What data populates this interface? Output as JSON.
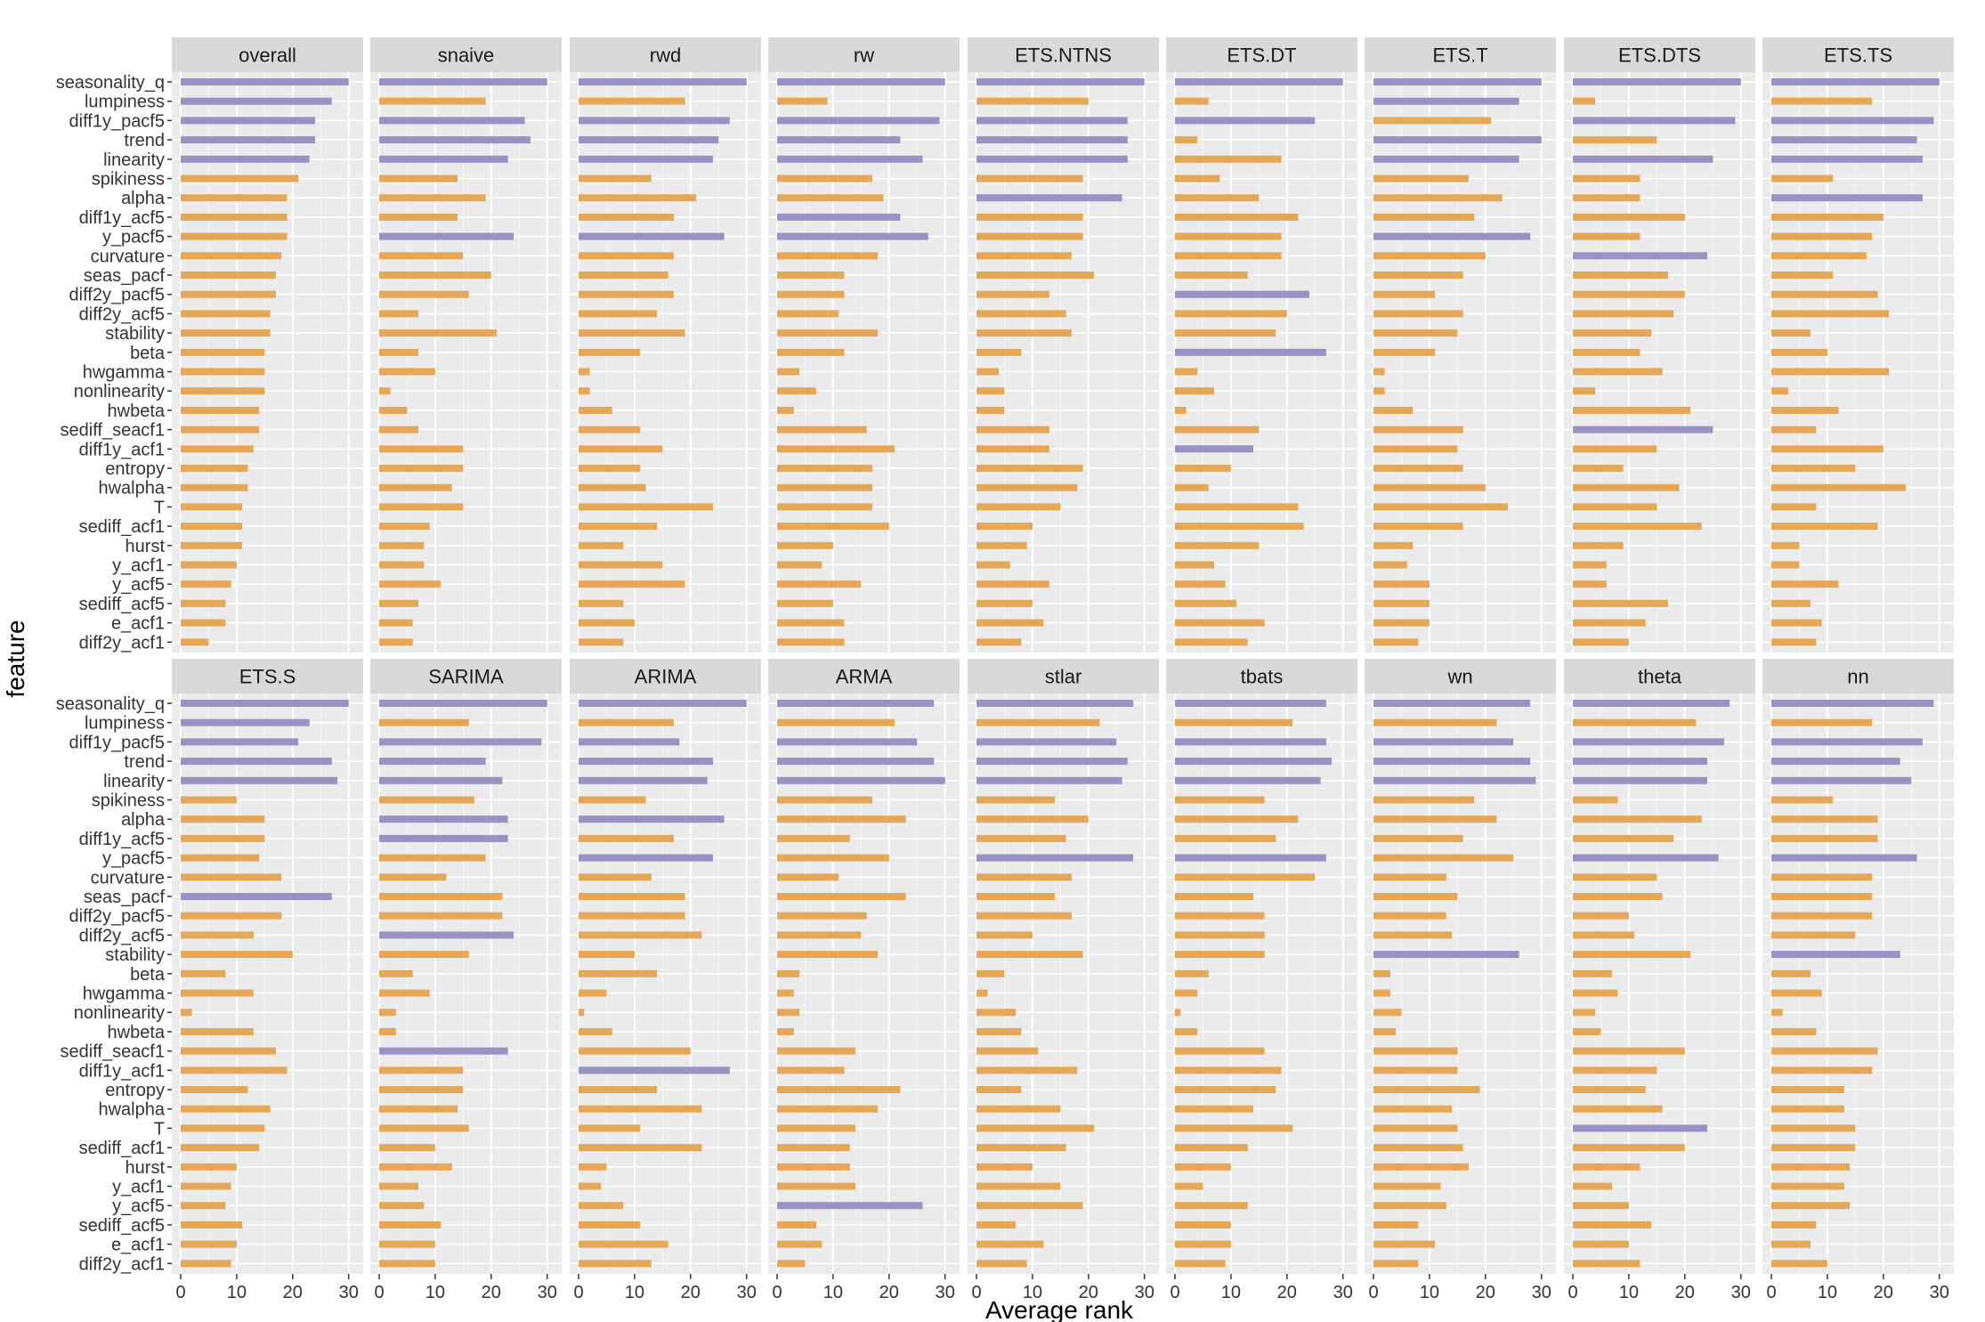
{
  "chart_data": {
    "type": "bar",
    "orientation": "horizontal",
    "facet_layout": {
      "rows": 2,
      "cols": 9
    },
    "xlabel": "Average rank",
    "ylabel": "feature",
    "xlim": [
      0,
      31
    ],
    "xticks": [
      0,
      10,
      20,
      30
    ],
    "grid": true,
    "colors": {
      "highlight": "#9A92C4",
      "normal": "#E6A757",
      "panel_bg": "#EBEBEB",
      "strip_bg": "#D9D9D9",
      "grid": "#FFFFFF"
    },
    "features": [
      "seasonality_q",
      "lumpiness",
      "diff1y_pacf5",
      "trend",
      "linearity",
      "spikiness",
      "alpha",
      "diff1y_acf5",
      "y_pacf5",
      "curvature",
      "seas_pacf",
      "diff2y_pacf5",
      "diff2y_acf5",
      "stability",
      "beta",
      "hwgamma",
      "nonlinearity",
      "hwbeta",
      "sediff_seacf1",
      "diff1y_acf1",
      "entropy",
      "hwalpha",
      "T",
      "sediff_acf1",
      "hurst",
      "y_acf1",
      "y_acf5",
      "sediff_acf5",
      "e_acf1",
      "diff2y_acf1"
    ],
    "panels": [
      {
        "name": "overall",
        "values": [
          30,
          27,
          24,
          24,
          23,
          21,
          19,
          19,
          19,
          18,
          17,
          17,
          16,
          16,
          15,
          15,
          15,
          14,
          14,
          13,
          12,
          12,
          11,
          11,
          11,
          10,
          9,
          8,
          8,
          5
        ],
        "highlight": [
          0,
          1,
          2,
          3,
          4
        ]
      },
      {
        "name": "snaive",
        "values": [
          30,
          19,
          26,
          27,
          23,
          14,
          19,
          14,
          24,
          15,
          20,
          16,
          7,
          21,
          7,
          10,
          2,
          5,
          7,
          15,
          15,
          13,
          15,
          9,
          8,
          8,
          11,
          7,
          6,
          6
        ],
        "highlight": [
          0,
          2,
          3,
          4,
          8
        ]
      },
      {
        "name": "rwd",
        "values": [
          30,
          19,
          27,
          25,
          24,
          13,
          21,
          17,
          26,
          17,
          16,
          17,
          14,
          19,
          11,
          2,
          2,
          6,
          11,
          15,
          11,
          12,
          24,
          14,
          8,
          15,
          19,
          8,
          10,
          8
        ],
        "highlight": [
          0,
          2,
          3,
          4,
          8
        ]
      },
      {
        "name": "rw",
        "values": [
          30,
          9,
          29,
          22,
          26,
          17,
          19,
          22,
          27,
          18,
          12,
          12,
          11,
          18,
          12,
          4,
          7,
          3,
          16,
          21,
          17,
          17,
          17,
          20,
          10,
          8,
          15,
          10,
          12,
          12
        ],
        "highlight": [
          0,
          2,
          3,
          4,
          7,
          8
        ]
      },
      {
        "name": "ETS.NTNS",
        "values": [
          30,
          20,
          27,
          27,
          27,
          19,
          26,
          19,
          19,
          17,
          21,
          13,
          16,
          17,
          8,
          4,
          5,
          5,
          13,
          13,
          19,
          18,
          15,
          10,
          9,
          6,
          13,
          10,
          12,
          8
        ],
        "highlight": [
          0,
          2,
          3,
          4,
          6
        ]
      },
      {
        "name": "ETS.DT",
        "values": [
          30,
          6,
          25,
          4,
          19,
          8,
          15,
          22,
          19,
          19,
          13,
          24,
          20,
          18,
          27,
          4,
          7,
          2,
          15,
          14,
          10,
          6,
          22,
          23,
          15,
          7,
          9,
          11,
          16,
          13
        ],
        "highlight": [
          0,
          2,
          11,
          14,
          19
        ]
      },
      {
        "name": "ETS.T",
        "values": [
          30,
          26,
          21,
          30,
          26,
          17,
          23,
          18,
          28,
          20,
          16,
          11,
          16,
          15,
          11,
          2,
          2,
          7,
          16,
          15,
          16,
          20,
          24,
          16,
          7,
          6,
          10,
          10,
          10,
          8
        ],
        "highlight": [
          0,
          1,
          3,
          4,
          8
        ]
      },
      {
        "name": "ETS.DTS",
        "values": [
          30,
          4,
          29,
          15,
          25,
          12,
          12,
          20,
          12,
          24,
          17,
          20,
          18,
          14,
          12,
          16,
          4,
          21,
          25,
          15,
          9,
          19,
          15,
          23,
          9,
          6,
          6,
          17,
          13,
          10
        ],
        "highlight": [
          0,
          2,
          4,
          9,
          18
        ]
      },
      {
        "name": "ETS.TS",
        "values": [
          30,
          18,
          29,
          26,
          27,
          11,
          27,
          20,
          18,
          17,
          11,
          19,
          21,
          7,
          10,
          21,
          3,
          12,
          8,
          20,
          15,
          24,
          8,
          19,
          5,
          5,
          12,
          7,
          9,
          8
        ],
        "highlight": [
          0,
          2,
          3,
          4,
          6
        ]
      },
      {
        "name": "ETS.S",
        "values": [
          30,
          23,
          21,
          27,
          28,
          10,
          15,
          15,
          14,
          18,
          27,
          18,
          13,
          20,
          8,
          13,
          2,
          13,
          17,
          19,
          12,
          16,
          15,
          14,
          10,
          9,
          8,
          11,
          10,
          9
        ],
        "highlight": [
          0,
          1,
          2,
          3,
          4,
          10
        ]
      },
      {
        "name": "SARIMA",
        "values": [
          30,
          16,
          29,
          19,
          22,
          17,
          23,
          23,
          19,
          12,
          22,
          22,
          24,
          16,
          6,
          9,
          3,
          3,
          23,
          15,
          15,
          14,
          16,
          10,
          13,
          7,
          8,
          11,
          10,
          10
        ],
        "highlight": [
          0,
          2,
          3,
          4,
          6,
          7,
          12,
          18
        ]
      },
      {
        "name": "ARIMA",
        "values": [
          30,
          17,
          18,
          24,
          23,
          12,
          26,
          17,
          24,
          13,
          19,
          19,
          22,
          10,
          14,
          5,
          1,
          6,
          20,
          27,
          14,
          22,
          11,
          22,
          5,
          4,
          8,
          11,
          16,
          13
        ],
        "highlight": [
          0,
          2,
          3,
          4,
          6,
          8,
          19
        ]
      },
      {
        "name": "ARMA",
        "values": [
          28,
          21,
          25,
          28,
          30,
          17,
          23,
          13,
          20,
          11,
          23,
          16,
          15,
          18,
          4,
          3,
          4,
          3,
          14,
          12,
          22,
          18,
          14,
          13,
          13,
          14,
          26,
          7,
          8,
          5
        ],
        "highlight": [
          0,
          2,
          3,
          4,
          26
        ]
      },
      {
        "name": "stlar",
        "values": [
          28,
          22,
          25,
          27,
          26,
          14,
          20,
          16,
          28,
          17,
          14,
          17,
          10,
          19,
          5,
          2,
          7,
          8,
          11,
          18,
          8,
          15,
          21,
          16,
          10,
          15,
          19,
          7,
          12,
          9
        ],
        "highlight": [
          0,
          2,
          3,
          4,
          8
        ]
      },
      {
        "name": "tbats",
        "values": [
          27,
          21,
          27,
          28,
          26,
          16,
          22,
          18,
          27,
          25,
          14,
          16,
          16,
          16,
          6,
          4,
          1,
          4,
          16,
          19,
          18,
          14,
          21,
          13,
          10,
          5,
          13,
          10,
          10,
          9
        ],
        "highlight": [
          0,
          2,
          3,
          4,
          8
        ]
      },
      {
        "name": "wn",
        "values": [
          28,
          22,
          25,
          28,
          29,
          18,
          22,
          16,
          25,
          13,
          15,
          13,
          14,
          26,
          3,
          3,
          5,
          4,
          15,
          15,
          19,
          14,
          15,
          16,
          17,
          12,
          13,
          8,
          11,
          8
        ],
        "highlight": [
          0,
          2,
          3,
          4,
          13
        ]
      },
      {
        "name": "theta",
        "values": [
          28,
          22,
          27,
          24,
          24,
          8,
          23,
          18,
          26,
          15,
          16,
          10,
          11,
          21,
          7,
          8,
          4,
          5,
          20,
          15,
          13,
          16,
          24,
          20,
          12,
          7,
          10,
          14,
          10,
          12
        ],
        "highlight": [
          0,
          2,
          3,
          4,
          8,
          22
        ]
      },
      {
        "name": "nn",
        "values": [
          29,
          18,
          27,
          23,
          25,
          11,
          19,
          19,
          26,
          18,
          18,
          18,
          15,
          23,
          7,
          9,
          2,
          8,
          19,
          18,
          13,
          13,
          15,
          15,
          14,
          13,
          14,
          8,
          7,
          10
        ],
        "highlight": [
          0,
          2,
          3,
          4,
          8,
          13
        ]
      }
    ]
  }
}
